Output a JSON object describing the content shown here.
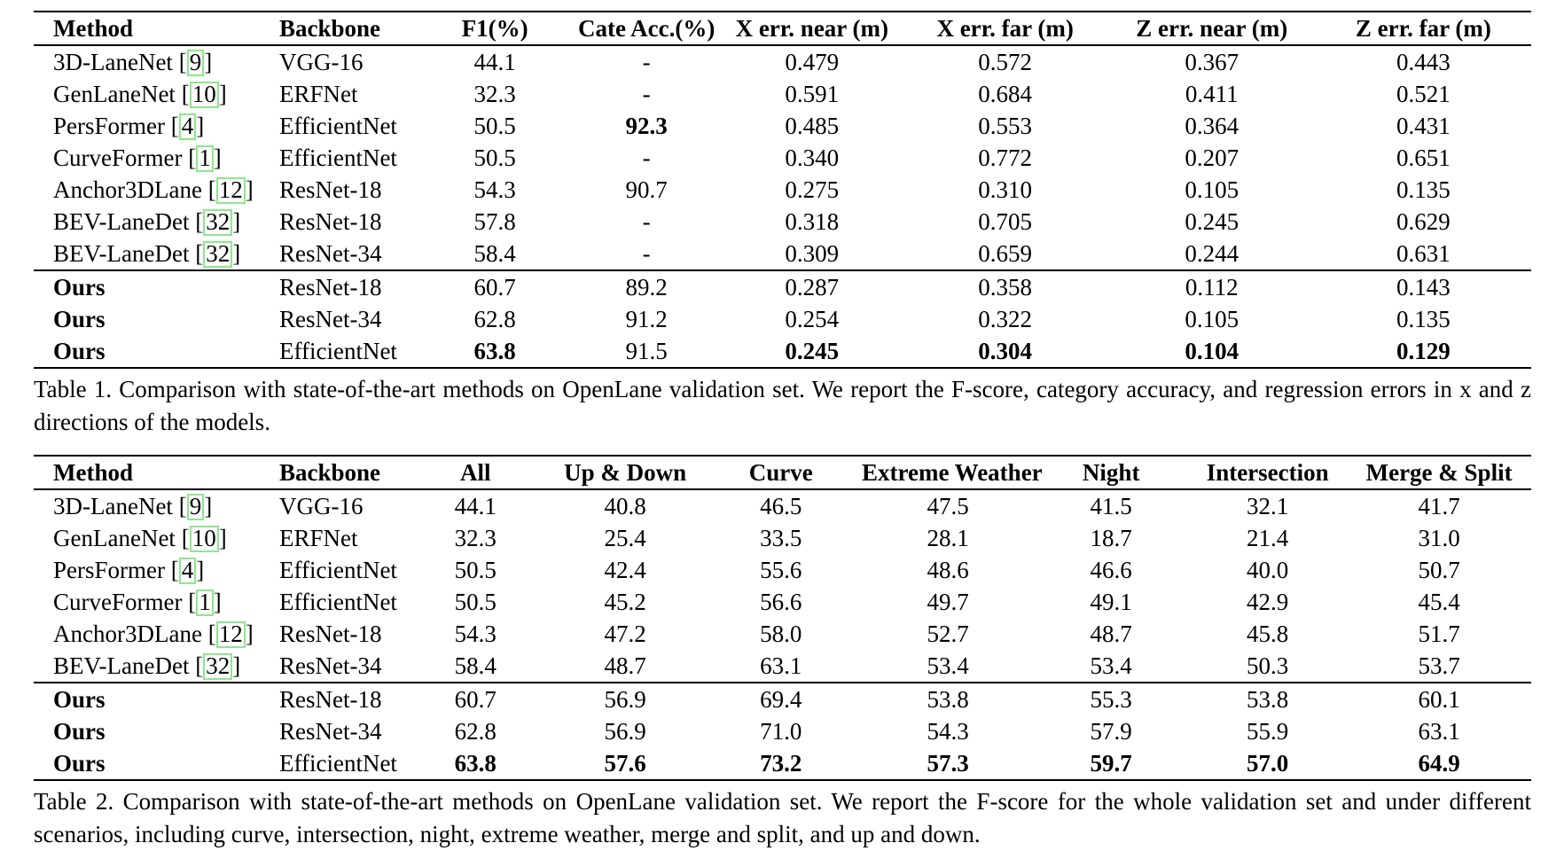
{
  "colors": {
    "background": "#ffffff",
    "text": "#000000",
    "citation_box": "#8ce78c"
  },
  "table1": {
    "headers": [
      "Method",
      "Backbone",
      "F1(%)",
      "Cate Acc.(%)",
      "X err. near (m)",
      "X err. far (m)",
      "Z err. near (m)",
      "Z err. far (m)"
    ],
    "rows": [
      {
        "method": "3D-LaneNet",
        "cite": "9",
        "method_bold": false,
        "rule_above": false,
        "values": [
          "VGG-16",
          "44.1",
          "-",
          "0.479",
          "0.572",
          "0.367",
          "0.443"
        ],
        "bold": [
          false,
          false,
          false,
          false,
          false,
          false,
          false
        ]
      },
      {
        "method": "GenLaneNet",
        "cite": "10",
        "method_bold": false,
        "rule_above": false,
        "values": [
          "ERFNet",
          "32.3",
          "-",
          "0.591",
          "0.684",
          "0.411",
          "0.521"
        ],
        "bold": [
          false,
          false,
          false,
          false,
          false,
          false,
          false
        ]
      },
      {
        "method": "PersFormer",
        "cite": "4",
        "method_bold": false,
        "rule_above": false,
        "values": [
          "EfficientNet",
          "50.5",
          "92.3",
          "0.485",
          "0.553",
          "0.364",
          "0.431"
        ],
        "bold": [
          false,
          false,
          true,
          false,
          false,
          false,
          false
        ]
      },
      {
        "method": "CurveFormer",
        "cite": "1",
        "method_bold": false,
        "rule_above": false,
        "values": [
          "EfficientNet",
          "50.5",
          "-",
          "0.340",
          "0.772",
          "0.207",
          "0.651"
        ],
        "bold": [
          false,
          false,
          false,
          false,
          false,
          false,
          false
        ]
      },
      {
        "method": "Anchor3DLane",
        "cite": "12",
        "method_bold": false,
        "rule_above": false,
        "values": [
          "ResNet-18",
          "54.3",
          "90.7",
          "0.275",
          "0.310",
          "0.105",
          "0.135"
        ],
        "bold": [
          false,
          false,
          false,
          false,
          false,
          false,
          false
        ]
      },
      {
        "method": "BEV-LaneDet",
        "cite": "32",
        "method_bold": false,
        "rule_above": false,
        "values": [
          "ResNet-18",
          "57.8",
          "-",
          "0.318",
          "0.705",
          "0.245",
          "0.629"
        ],
        "bold": [
          false,
          false,
          false,
          false,
          false,
          false,
          false
        ]
      },
      {
        "method": "BEV-LaneDet",
        "cite": "32",
        "method_bold": false,
        "rule_above": false,
        "values": [
          "ResNet-34",
          "58.4",
          "-",
          "0.309",
          "0.659",
          "0.244",
          "0.631"
        ],
        "bold": [
          false,
          false,
          false,
          false,
          false,
          false,
          false
        ]
      },
      {
        "method": "Ours",
        "cite": null,
        "method_bold": true,
        "rule_above": true,
        "values": [
          "ResNet-18",
          "60.7",
          "89.2",
          "0.287",
          "0.358",
          "0.112",
          "0.143"
        ],
        "bold": [
          false,
          false,
          false,
          false,
          false,
          false,
          false
        ]
      },
      {
        "method": "Ours",
        "cite": null,
        "method_bold": true,
        "rule_above": false,
        "values": [
          "ResNet-34",
          "62.8",
          "91.2",
          "0.254",
          "0.322",
          "0.105",
          "0.135"
        ],
        "bold": [
          false,
          false,
          false,
          false,
          false,
          false,
          false
        ]
      },
      {
        "method": "Ours",
        "cite": null,
        "method_bold": true,
        "rule_above": false,
        "values": [
          "EfficientNet",
          "63.8",
          "91.5",
          "0.245",
          "0.304",
          "0.104",
          "0.129"
        ],
        "bold": [
          false,
          true,
          false,
          true,
          true,
          true,
          true
        ]
      }
    ],
    "caption": "Table 1. Comparison with state-of-the-art methods on OpenLane validation set. We report the F-score, category accuracy, and regression errors in x and z directions of the models."
  },
  "table2": {
    "headers": [
      "Method",
      "Backbone",
      "All",
      "Up & Down",
      "Curve",
      "Extreme Weather",
      "Night",
      "Intersection",
      "Merge & Split"
    ],
    "rows": [
      {
        "method": "3D-LaneNet",
        "cite": "9",
        "method_bold": false,
        "rule_above": false,
        "values": [
          "VGG-16",
          "44.1",
          "40.8",
          "46.5",
          "47.5",
          "41.5",
          "32.1",
          "41.7"
        ],
        "bold": [
          false,
          false,
          false,
          false,
          false,
          false,
          false,
          false
        ]
      },
      {
        "method": "GenLaneNet",
        "cite": "10",
        "method_bold": false,
        "rule_above": false,
        "values": [
          "ERFNet",
          "32.3",
          "25.4",
          "33.5",
          "28.1",
          "18.7",
          "21.4",
          "31.0"
        ],
        "bold": [
          false,
          false,
          false,
          false,
          false,
          false,
          false,
          false
        ]
      },
      {
        "method": "PersFormer",
        "cite": "4",
        "method_bold": false,
        "rule_above": false,
        "values": [
          "EfficientNet",
          "50.5",
          "42.4",
          "55.6",
          "48.6",
          "46.6",
          "40.0",
          "50.7"
        ],
        "bold": [
          false,
          false,
          false,
          false,
          false,
          false,
          false,
          false
        ]
      },
      {
        "method": "CurveFormer",
        "cite": "1",
        "method_bold": false,
        "rule_above": false,
        "values": [
          "EfficientNet",
          "50.5",
          "45.2",
          "56.6",
          "49.7",
          "49.1",
          "42.9",
          "45.4"
        ],
        "bold": [
          false,
          false,
          false,
          false,
          false,
          false,
          false,
          false
        ]
      },
      {
        "method": "Anchor3DLane",
        "cite": "12",
        "method_bold": false,
        "rule_above": false,
        "values": [
          "ResNet-18",
          "54.3",
          "47.2",
          "58.0",
          "52.7",
          "48.7",
          "45.8",
          "51.7"
        ],
        "bold": [
          false,
          false,
          false,
          false,
          false,
          false,
          false,
          false
        ]
      },
      {
        "method": "BEV-LaneDet",
        "cite": "32",
        "method_bold": false,
        "rule_above": false,
        "values": [
          "ResNet-34",
          "58.4",
          "48.7",
          "63.1",
          "53.4",
          "53.4",
          "50.3",
          "53.7"
        ],
        "bold": [
          false,
          false,
          false,
          false,
          false,
          false,
          false,
          false
        ]
      },
      {
        "method": "Ours",
        "cite": null,
        "method_bold": true,
        "rule_above": true,
        "values": [
          "ResNet-18",
          "60.7",
          "56.9",
          "69.4",
          "53.8",
          "55.3",
          "53.8",
          "60.1"
        ],
        "bold": [
          false,
          false,
          false,
          false,
          false,
          false,
          false,
          false
        ]
      },
      {
        "method": "Ours",
        "cite": null,
        "method_bold": true,
        "rule_above": false,
        "values": [
          "ResNet-34",
          "62.8",
          "56.9",
          "71.0",
          "54.3",
          "57.9",
          "55.9",
          "63.1"
        ],
        "bold": [
          false,
          false,
          false,
          false,
          false,
          false,
          false,
          false
        ]
      },
      {
        "method": "Ours",
        "cite": null,
        "method_bold": true,
        "rule_above": false,
        "values": [
          "EfficientNet",
          "63.8",
          "57.6",
          "73.2",
          "57.3",
          "59.7",
          "57.0",
          "64.9"
        ],
        "bold": [
          false,
          true,
          true,
          true,
          true,
          true,
          true,
          true
        ]
      }
    ],
    "caption": "Table 2. Comparison with state-of-the-art methods on OpenLane validation set. We report the F-score for the whole validation set and under different scenarios, including curve, intersection, night, extreme weather, merge and split, and up and down."
  }
}
